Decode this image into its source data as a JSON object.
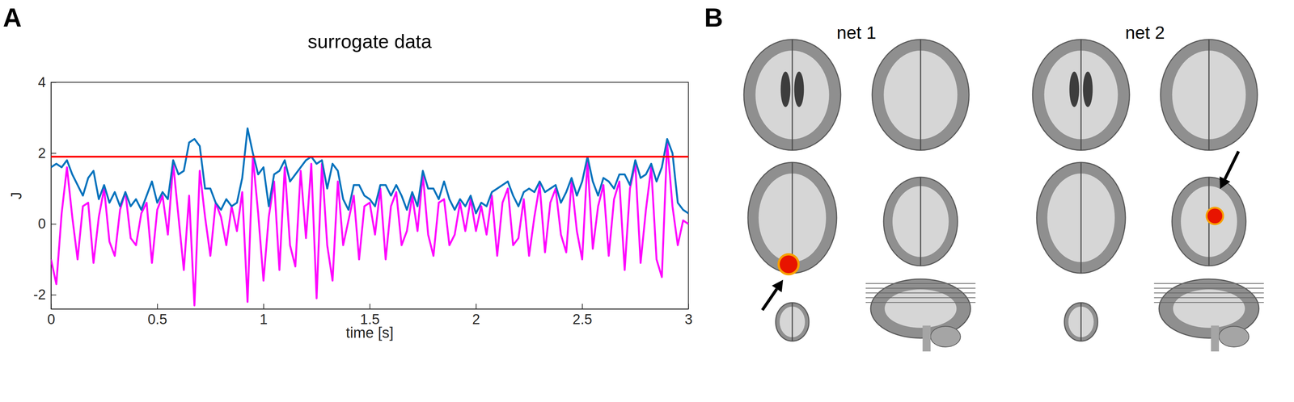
{
  "chart_data": {
    "type": "line",
    "panel_label": "A",
    "title": "surrogate data",
    "x_label": "time [s]",
    "y_label": "J",
    "x": [
      0,
      0.025,
      0.05,
      0.075,
      0.1,
      0.125,
      0.15,
      0.175,
      0.2,
      0.225,
      0.25,
      0.275,
      0.3,
      0.325,
      0.35,
      0.375,
      0.4,
      0.425,
      0.45,
      0.475,
      0.5,
      0.525,
      0.55,
      0.575,
      0.6,
      0.625,
      0.65,
      0.675,
      0.7,
      0.725,
      0.75,
      0.775,
      0.8,
      0.825,
      0.85,
      0.875,
      0.9,
      0.925,
      0.95,
      0.975,
      1,
      1.025,
      1.05,
      1.075,
      1.1,
      1.125,
      1.15,
      1.175,
      1.2,
      1.225,
      1.25,
      1.275,
      1.3,
      1.325,
      1.35,
      1.375,
      1.4,
      1.425,
      1.45,
      1.475,
      1.5,
      1.525,
      1.55,
      1.575,
      1.6,
      1.625,
      1.65,
      1.675,
      1.7,
      1.725,
      1.75,
      1.775,
      1.8,
      1.825,
      1.85,
      1.875,
      1.9,
      1.925,
      1.95,
      1.975,
      2,
      2.025,
      2.05,
      2.075,
      2.1,
      2.125,
      2.15,
      2.175,
      2.2,
      2.225,
      2.25,
      2.275,
      2.3,
      2.325,
      2.35,
      2.375,
      2.4,
      2.425,
      2.45,
      2.475,
      2.5,
      2.525,
      2.55,
      2.575,
      2.6,
      2.625,
      2.65,
      2.675,
      2.7,
      2.725,
      2.75,
      2.775,
      2.8,
      2.825,
      2.85,
      2.875,
      2.9,
      2.925,
      2.95,
      2.975,
      3
    ],
    "xlim": [
      0,
      3
    ],
    "xticks": [
      0,
      0.5,
      1,
      1.5,
      2,
      2.5,
      3
    ],
    "ylim": [
      -2.4,
      4
    ],
    "yticks": [
      -2,
      0,
      2,
      4
    ],
    "grid": false,
    "threshold": {
      "value": 1.9,
      "color": "#ff0000"
    },
    "series": [
      {
        "color": "#0072bd",
        "values": [
          1.6,
          1.7,
          1.6,
          1.8,
          1.4,
          1.1,
          0.8,
          1.3,
          1.5,
          0.7,
          1.1,
          0.6,
          0.9,
          0.5,
          0.9,
          0.5,
          0.7,
          0.4,
          0.8,
          1.2,
          0.6,
          0.9,
          0.7,
          1.8,
          1.4,
          1.5,
          2.3,
          2.4,
          2.2,
          1.0,
          1.0,
          0.6,
          0.4,
          0.7,
          0.5,
          0.6,
          1.3,
          2.7,
          2.0,
          1.4,
          1.6,
          0.5,
          1.4,
          1.5,
          1.8,
          1.2,
          1.4,
          1.6,
          1.8,
          1.9,
          1.7,
          1.8,
          1.0,
          1.7,
          1.5,
          0.7,
          0.4,
          1.1,
          1.1,
          0.8,
          0.7,
          0.5,
          1.1,
          1.1,
          0.8,
          1.1,
          0.8,
          0.4,
          0.9,
          0.5,
          1.5,
          1.0,
          1.0,
          0.7,
          1.2,
          0.7,
          0.4,
          0.7,
          0.5,
          0.8,
          0.3,
          0.6,
          0.5,
          0.9,
          1.0,
          1.1,
          1.2,
          0.8,
          0.5,
          0.9,
          1.0,
          0.9,
          1.2,
          0.9,
          1.0,
          1.1,
          0.6,
          0.9,
          1.3,
          0.8,
          1.2,
          1.9,
          1.2,
          0.8,
          1.3,
          1.2,
          1.0,
          1.4,
          1.4,
          1.1,
          1.8,
          1.3,
          1.4,
          1.7,
          1.2,
          1.6,
          2.4,
          2.0,
          0.6,
          0.4,
          0.3
        ]
      },
      {
        "color": "#ff00ff",
        "values": [
          -1.0,
          -1.7,
          0.3,
          1.6,
          0.2,
          -1.0,
          0.5,
          0.6,
          -1.1,
          0.2,
          1.0,
          -0.5,
          -0.9,
          0.4,
          0.9,
          -0.4,
          -0.6,
          0.3,
          0.6,
          -1.1,
          0.4,
          0.8,
          -0.3,
          1.7,
          0.2,
          -1.3,
          0.8,
          -2.3,
          1.5,
          0.2,
          -0.9,
          0.6,
          0.2,
          -0.6,
          0.5,
          -0.2,
          0.9,
          -2.2,
          1.9,
          0.3,
          -1.6,
          0.2,
          1.2,
          -1.3,
          1.6,
          -0.6,
          -1.2,
          1.5,
          -0.4,
          1.7,
          -2.1,
          1.7,
          -0.6,
          -1.6,
          1.2,
          -0.6,
          0.1,
          0.8,
          -1.0,
          0.5,
          0.6,
          -0.3,
          1.0,
          -1.0,
          0.5,
          0.9,
          -0.6,
          -0.2,
          0.8,
          -0.2,
          1.4,
          -0.3,
          -0.9,
          0.6,
          0.7,
          -0.6,
          -0.3,
          0.6,
          -0.2,
          0.7,
          -0.2,
          0.5,
          -0.3,
          0.8,
          -0.9,
          0.6,
          1.0,
          -0.6,
          -0.4,
          0.7,
          -0.9,
          0.2,
          1.1,
          -0.8,
          0.6,
          1.0,
          -0.3,
          -0.8,
          1.2,
          -0.2,
          -1.0,
          1.8,
          -0.7,
          0.5,
          1.1,
          -0.9,
          0.7,
          1.2,
          -1.3,
          1.0,
          1.7,
          -1.1,
          0.4,
          1.6,
          -1.0,
          -1.5,
          2.3,
          0.5,
          -0.6,
          0.1,
          0.0
        ]
      }
    ]
  },
  "panel_b": {
    "panel_label": "B",
    "networks": [
      "net 1",
      "net 2"
    ]
  }
}
